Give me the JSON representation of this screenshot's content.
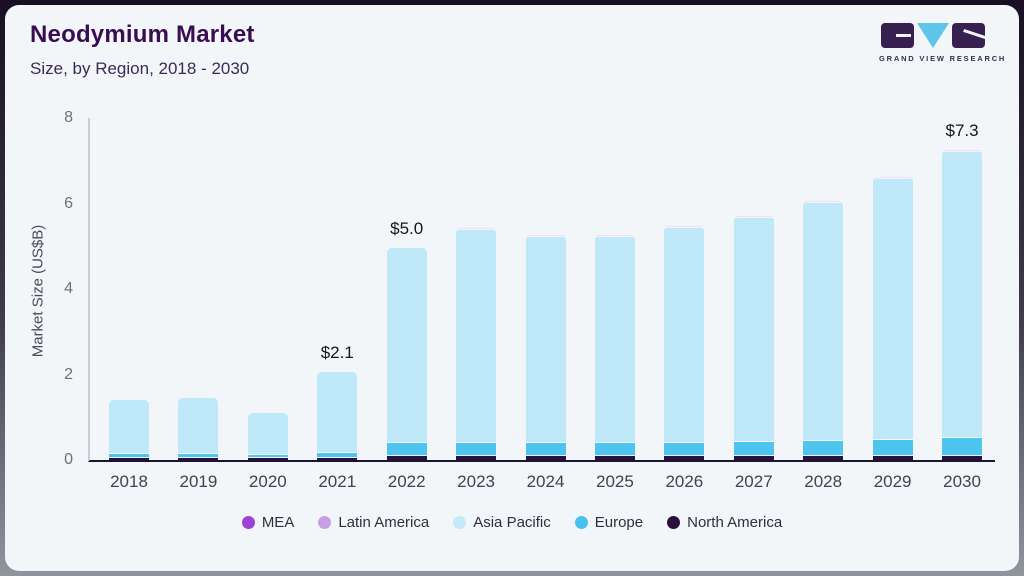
{
  "header": {
    "title": "Neodymium Market",
    "subtitle": "Size, by Region, 2018 - 2030"
  },
  "logo": {
    "text": "GRAND VIEW RESEARCH"
  },
  "chart_data": {
    "type": "bar",
    "stacked": true,
    "title": "Neodymium Market Size, by Region, 2018 - 2030",
    "xlabel": "",
    "ylabel": "Market Size (US$B)",
    "ylim": [
      0,
      8
    ],
    "yticks": [
      0,
      2,
      4,
      6,
      8
    ],
    "grid": false,
    "legend_position": "bottom",
    "categories": [
      "2018",
      "2019",
      "2020",
      "2021",
      "2022",
      "2023",
      "2024",
      "2025",
      "2026",
      "2027",
      "2028",
      "2029",
      "2030"
    ],
    "series": [
      {
        "name": "North America",
        "color": "#2a1040",
        "values": [
          0.05,
          0.05,
          0.05,
          0.05,
          0.1,
          0.1,
          0.1,
          0.1,
          0.1,
          0.1,
          0.1,
          0.1,
          0.1
        ]
      },
      {
        "name": "Europe",
        "color": "#4ec5ef",
        "values": [
          0.1,
          0.1,
          0.06,
          0.12,
          0.3,
          0.3,
          0.3,
          0.3,
          0.3,
          0.32,
          0.35,
          0.38,
          0.42
        ]
      },
      {
        "name": "Asia Pacific",
        "color": "#bfe8f8",
        "values": [
          1.25,
          1.3,
          0.99,
          1.88,
          4.55,
          4.97,
          4.82,
          4.82,
          5.02,
          5.25,
          5.57,
          6.09,
          6.68
        ]
      },
      {
        "name": "Latin America",
        "color": "#cb9fe8",
        "values": [
          0,
          0,
          0,
          0,
          0,
          0.02,
          0.02,
          0.02,
          0.02,
          0.02,
          0.02,
          0.02,
          0.03
        ]
      },
      {
        "name": "MEA",
        "color": "#9d43d3",
        "values": [
          0,
          0,
          0,
          0,
          0,
          0.01,
          0.01,
          0.01,
          0.01,
          0.01,
          0.01,
          0.01,
          0.02
        ]
      }
    ],
    "totals": [
      1.4,
      1.45,
      1.1,
      2.05,
      4.95,
      5.4,
      5.25,
      5.25,
      5.45,
      5.7,
      6.05,
      6.6,
      7.25
    ],
    "annotations": [
      {
        "category": "2021",
        "label": "$2.1"
      },
      {
        "category": "2022",
        "label": "$5.0"
      },
      {
        "category": "2030",
        "label": "$7.3"
      }
    ]
  },
  "legend": {
    "items": [
      {
        "label": "MEA",
        "color": "#9d43d3"
      },
      {
        "label": "Latin America",
        "color": "#cb9fe8"
      },
      {
        "label": "Asia Pacific",
        "color": "#c4e9f8"
      },
      {
        "label": "Europe",
        "color": "#49c1ee"
      },
      {
        "label": "North America",
        "color": "#2a0f3d"
      }
    ]
  }
}
